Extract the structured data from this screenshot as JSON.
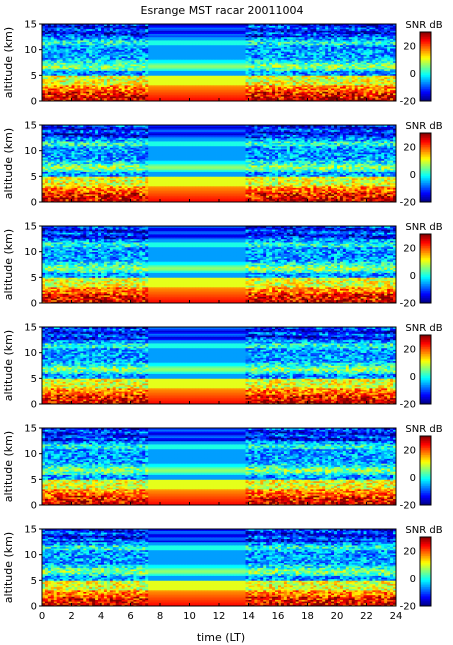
{
  "chart_data": {
    "type": "heatmap",
    "title": "Esrange MST racar 20011004",
    "xlabel": "time (LT)",
    "ylabel": "altitude (km)",
    "xlim": [
      0,
      24
    ],
    "ylim": [
      0,
      15
    ],
    "xticks": [
      0,
      2,
      4,
      6,
      8,
      10,
      12,
      14,
      16,
      18,
      20,
      22,
      24
    ],
    "yticks": [
      0,
      5,
      10,
      15
    ],
    "colorbar": {
      "label": "SNR dB",
      "range": [
        -20,
        30
      ],
      "ticks": [
        -20,
        0,
        20
      ],
      "colormap": "jet"
    },
    "panels": [
      {
        "panel": 1,
        "colorbar_label": "SNR dB"
      },
      {
        "panel": 2,
        "colorbar_label": "SNR dB"
      },
      {
        "panel": 3,
        "colorbar_label": "SNR dB"
      },
      {
        "panel": 4,
        "colorbar_label": "SNR dB"
      },
      {
        "panel": 5,
        "colorbar_label": "SNR dB"
      },
      {
        "panel": 6,
        "colorbar_label": "SNR dB"
      }
    ],
    "data_gap_interval": [
      7.2,
      13.9
    ],
    "description_values": {
      "high_snr_layer_altitude_km": [
        0.5,
        3
      ],
      "mid_layer_altitude_km": [
        6,
        8
      ],
      "weak_layer_altitude_km": [
        11,
        12
      ]
    }
  }
}
